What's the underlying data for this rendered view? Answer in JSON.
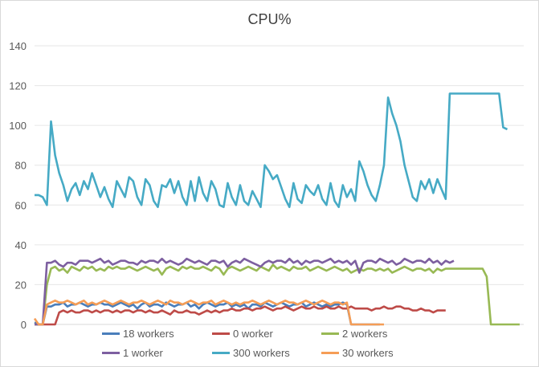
{
  "chart_data": {
    "type": "line",
    "title": "CPU%",
    "xlabel": "",
    "ylabel": "",
    "ylim": [
      0,
      140
    ],
    "yticks": [
      0,
      20,
      40,
      60,
      80,
      100,
      120,
      140
    ],
    "xlim": [
      0,
      119
    ],
    "grid": true,
    "legend_position": "bottom",
    "series": [
      {
        "name": "18 workers",
        "color": "#4a7ebb",
        "values": [
          1,
          0,
          0,
          9,
          9,
          10,
          10,
          11,
          9,
          10,
          10,
          11,
          10,
          9,
          10,
          10,
          11,
          10,
          10,
          9,
          10,
          11,
          10,
          9,
          10,
          8,
          10,
          11,
          9,
          10,
          10,
          9,
          11,
          10,
          9,
          10,
          10,
          11,
          9,
          10,
          8,
          10,
          11,
          10,
          9,
          10,
          10,
          11,
          9,
          10,
          9,
          10,
          8,
          10,
          10,
          9,
          11,
          10,
          9,
          10,
          11,
          10,
          9,
          10,
          10,
          11,
          9,
          10,
          11,
          10,
          9,
          10,
          9,
          10,
          10,
          11,
          10,
          0,
          0,
          0,
          0,
          0,
          0,
          0,
          0
        ]
      },
      {
        "name": "0 worker",
        "color": "#be4b48",
        "values": [
          0,
          0,
          0,
          0,
          0,
          0,
          6,
          7,
          6,
          7,
          6,
          6,
          7,
          7,
          6,
          7,
          6,
          7,
          7,
          6,
          7,
          6,
          7,
          7,
          6,
          7,
          7,
          6,
          7,
          6,
          6,
          7,
          6,
          5,
          7,
          6,
          6,
          7,
          6,
          6,
          5,
          6,
          7,
          6,
          7,
          6,
          7,
          7,
          8,
          7,
          7,
          8,
          8,
          7,
          8,
          8,
          9,
          8,
          7,
          8,
          8,
          9,
          8,
          7,
          8,
          9,
          8,
          8,
          9,
          8,
          8,
          9,
          8,
          8,
          9,
          8,
          8,
          9,
          8,
          8,
          8,
          8,
          7,
          8,
          8,
          9,
          8,
          8,
          9,
          9,
          8,
          8,
          7,
          7,
          8,
          7,
          7,
          6,
          7,
          7,
          7
        ]
      },
      {
        "name": "2 workers",
        "color": "#98b954",
        "values": [
          0,
          0,
          0,
          20,
          28,
          29,
          27,
          28,
          26,
          29,
          28,
          27,
          29,
          28,
          29,
          27,
          28,
          27,
          29,
          28,
          29,
          28,
          28,
          29,
          28,
          27,
          28,
          29,
          28,
          27,
          28,
          25,
          28,
          29,
          28,
          27,
          29,
          28,
          29,
          28,
          28,
          29,
          28,
          27,
          29,
          28,
          25,
          28,
          29,
          28,
          27,
          28,
          29,
          28,
          27,
          29,
          28,
          27,
          30,
          28,
          29,
          28,
          27,
          29,
          28,
          28,
          29,
          27,
          28,
          29,
          28,
          27,
          28,
          29,
          28,
          27,
          28,
          26,
          27,
          28,
          27,
          28,
          28,
          27,
          28,
          27,
          28,
          26,
          27,
          28,
          29,
          28,
          27,
          28,
          28,
          27,
          28,
          26,
          28,
          27,
          28,
          28,
          28,
          28,
          28,
          28,
          28,
          28,
          28,
          28,
          24,
          0,
          0,
          0,
          0,
          0,
          0,
          0,
          0
        ]
      },
      {
        "name": "1 worker",
        "color": "#7d5fa0",
        "values": [
          0,
          0,
          0,
          31,
          31,
          32,
          30,
          29,
          31,
          31,
          30,
          32,
          32,
          32,
          31,
          32,
          33,
          31,
          32,
          30,
          31,
          32,
          32,
          31,
          31,
          30,
          32,
          31,
          32,
          32,
          31,
          33,
          31,
          32,
          31,
          30,
          31,
          33,
          32,
          31,
          32,
          31,
          30,
          32,
          32,
          31,
          32,
          29,
          31,
          32,
          31,
          33,
          32,
          31,
          30,
          29,
          31,
          32,
          31,
          32,
          32,
          31,
          33,
          31,
          32,
          30,
          32,
          31,
          32,
          32,
          31,
          32,
          33,
          31,
          32,
          31,
          32,
          30,
          32,
          26,
          31,
          32,
          32,
          31,
          33,
          32,
          31,
          32,
          30,
          31,
          33,
          32,
          31,
          32,
          32,
          31,
          33,
          31,
          32,
          30,
          32,
          31,
          32
        ]
      },
      {
        "name": "300 workers",
        "color": "#46aac5",
        "values": [
          65,
          65,
          64,
          60,
          102,
          85,
          76,
          70,
          62,
          68,
          71,
          65,
          72,
          68,
          76,
          70,
          64,
          69,
          63,
          59,
          72,
          68,
          64,
          74,
          72,
          64,
          60,
          73,
          70,
          62,
          59,
          70,
          69,
          73,
          66,
          72,
          64,
          60,
          72,
          62,
          74,
          66,
          62,
          72,
          68,
          60,
          59,
          71,
          64,
          60,
          70,
          62,
          60,
          67,
          63,
          59,
          80,
          77,
          73,
          75,
          69,
          63,
          59,
          71,
          63,
          61,
          70,
          67,
          65,
          70,
          63,
          60,
          71,
          62,
          59,
          70,
          64,
          68,
          62,
          82,
          77,
          70,
          65,
          62,
          70,
          80,
          114,
          106,
          100,
          92,
          80,
          72,
          64,
          62,
          72,
          68,
          73,
          66,
          73,
          68,
          63,
          116,
          116,
          116,
          116,
          116,
          116,
          116,
          116,
          116,
          116,
          116,
          116,
          116,
          99,
          98
        ]
      },
      {
        "name": "30 workers",
        "color": "#f59d56",
        "values": [
          3,
          0,
          0,
          10,
          11,
          12,
          11,
          11,
          12,
          11,
          10,
          11,
          12,
          10,
          11,
          10,
          11,
          12,
          11,
          10,
          11,
          12,
          11,
          10,
          11,
          11,
          12,
          11,
          10,
          11,
          12,
          11,
          10,
          12,
          11,
          11,
          10,
          11,
          12,
          11,
          10,
          11,
          11,
          12,
          10,
          11,
          12,
          11,
          10,
          11,
          10,
          11,
          11,
          12,
          11,
          10,
          11,
          12,
          11,
          10,
          11,
          12,
          11,
          11,
          10,
          11,
          12,
          11,
          10,
          11,
          12,
          11,
          10,
          11,
          11,
          10,
          11,
          0,
          0,
          0,
          0,
          0,
          0,
          0,
          0,
          0
        ]
      }
    ]
  }
}
